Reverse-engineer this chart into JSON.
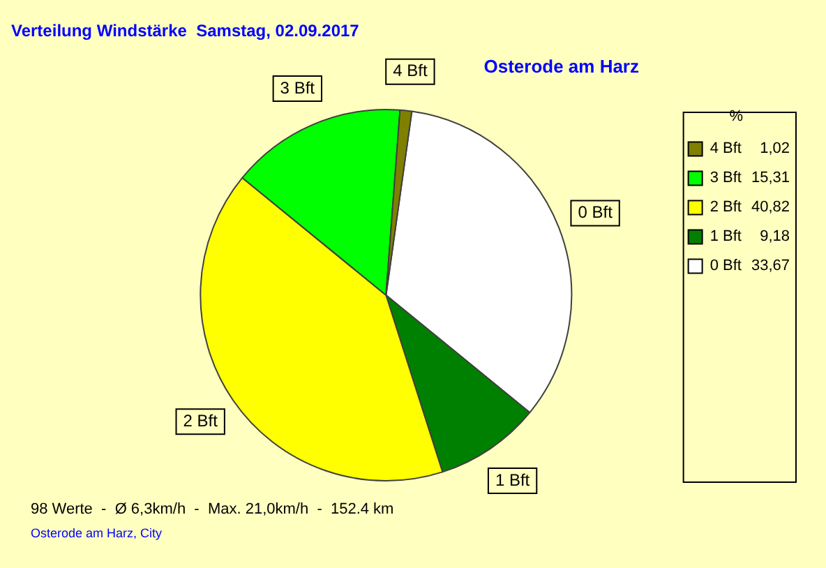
{
  "chart_data": {
    "type": "pie",
    "title": "Verteilung Windstärke  Samstag, 02.09.2017",
    "subtitle": "Osterode am Harz",
    "categories": [
      "0 Bft",
      "1 Bft",
      "2 Bft",
      "3 Bft",
      "4 Bft"
    ],
    "values": [
      33.67,
      9.18,
      40.82,
      15.31,
      1.02
    ],
    "value_labels": [
      "33,67",
      "9,18",
      "40,82",
      "15,31",
      "1,02"
    ],
    "colors": [
      "#ffffff",
      "#008000",
      "#ffff00",
      "#00ff00",
      "#808000"
    ],
    "legend": "top right",
    "legend_title": "%",
    "annotations": [
      "98 Werte  -  Ø 6,3km/h  -  Max. 21,0km/h  -  152.4 km",
      "Osterode am Harz, City"
    ]
  }
}
